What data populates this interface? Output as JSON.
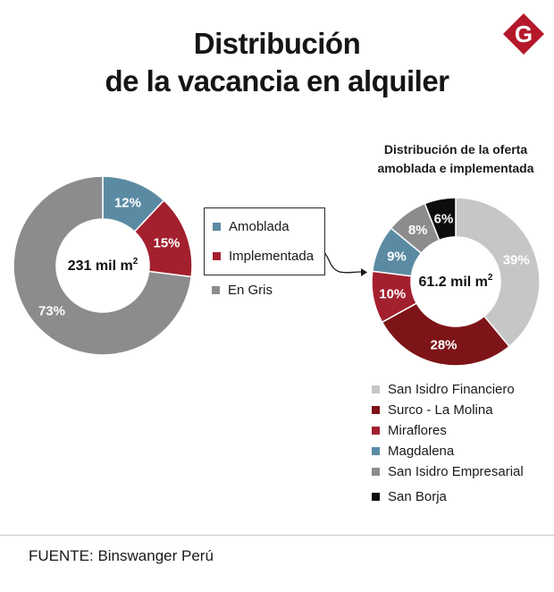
{
  "header": {
    "title_line1": "Distribución",
    "title_line2": "de la vacancia en alquiler",
    "logo_letter": "G"
  },
  "chart_data": [
    {
      "type": "pie",
      "variant": "donut",
      "title": "Distribución de la vacancia en alquiler",
      "center_label": "231 mil m",
      "center_unit_sup": "2",
      "slices": [
        {
          "name": "Amoblada",
          "value": 12,
          "label": "12%",
          "color": "#5b8ba3"
        },
        {
          "name": "Implementada",
          "value": 15,
          "label": "15%",
          "color": "#a3202e"
        },
        {
          "name": "En Gris",
          "value": 73,
          "label": "73%",
          "color": "#8c8c8e"
        }
      ],
      "legend": "center"
    },
    {
      "type": "pie",
      "variant": "donut",
      "title_line1": "Distribución de la oferta",
      "title_line2": "amoblada e implementada",
      "center_label": "61.2 mil m",
      "center_unit_sup": "2",
      "slices": [
        {
          "name": "San Isidro Financiero",
          "value": 39,
          "label": "39%",
          "color": "#c6c6c6"
        },
        {
          "name": "Surco - La Molina",
          "value": 28,
          "label": "28%",
          "color": "#7d1418"
        },
        {
          "name": "Miraflores",
          "value": 10,
          "label": "10%",
          "color": "#a3202e"
        },
        {
          "name": "Magdalena",
          "value": 9,
          "label": "9%",
          "color": "#5b8ba3"
        },
        {
          "name": "San Isidro Empresarial",
          "value": 8,
          "label": "8%",
          "color": "#8c8c8e"
        },
        {
          "name": "San Borja",
          "value": 6,
          "label": "6%",
          "color": "#0d0d0d"
        }
      ],
      "legend": "bottom"
    }
  ],
  "footer": {
    "source": "FUENTE: Binswanger Perú"
  }
}
